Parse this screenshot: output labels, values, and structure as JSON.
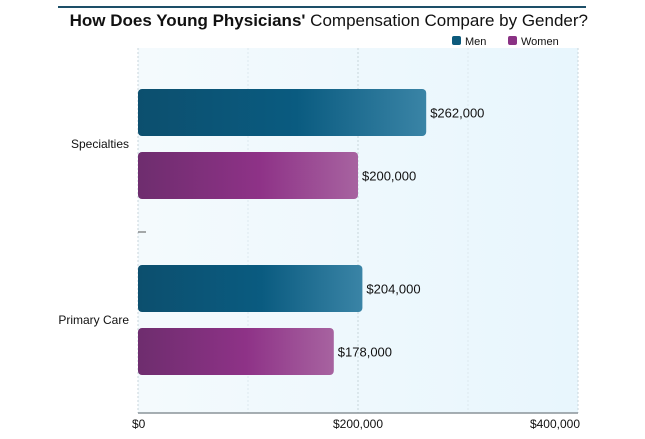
{
  "chart_data": {
    "type": "bar",
    "orientation": "horizontal",
    "title_bold": "How Does Young Physicians'",
    "title_rest": " Compensation Compare by Gender?",
    "categories": [
      "Specialties",
      "Primary Care"
    ],
    "series": [
      {
        "name": "Men",
        "values": [
          262000,
          204000
        ],
        "labels": [
          "$262,000",
          "$204,000"
        ],
        "color": "#0c5a7c"
      },
      {
        "name": "Women",
        "values": [
          200000,
          178000
        ],
        "labels": [
          "$200,000",
          "$178,000"
        ],
        "color": "#8a3284"
      }
    ],
    "xlim": [
      0,
      400000
    ],
    "xticks": [
      0,
      200000,
      400000
    ],
    "xtick_labels": [
      "$0",
      "$200,000",
      "$400,000"
    ],
    "grid": true,
    "legend": "top-right",
    "background": "#eef8fd"
  }
}
